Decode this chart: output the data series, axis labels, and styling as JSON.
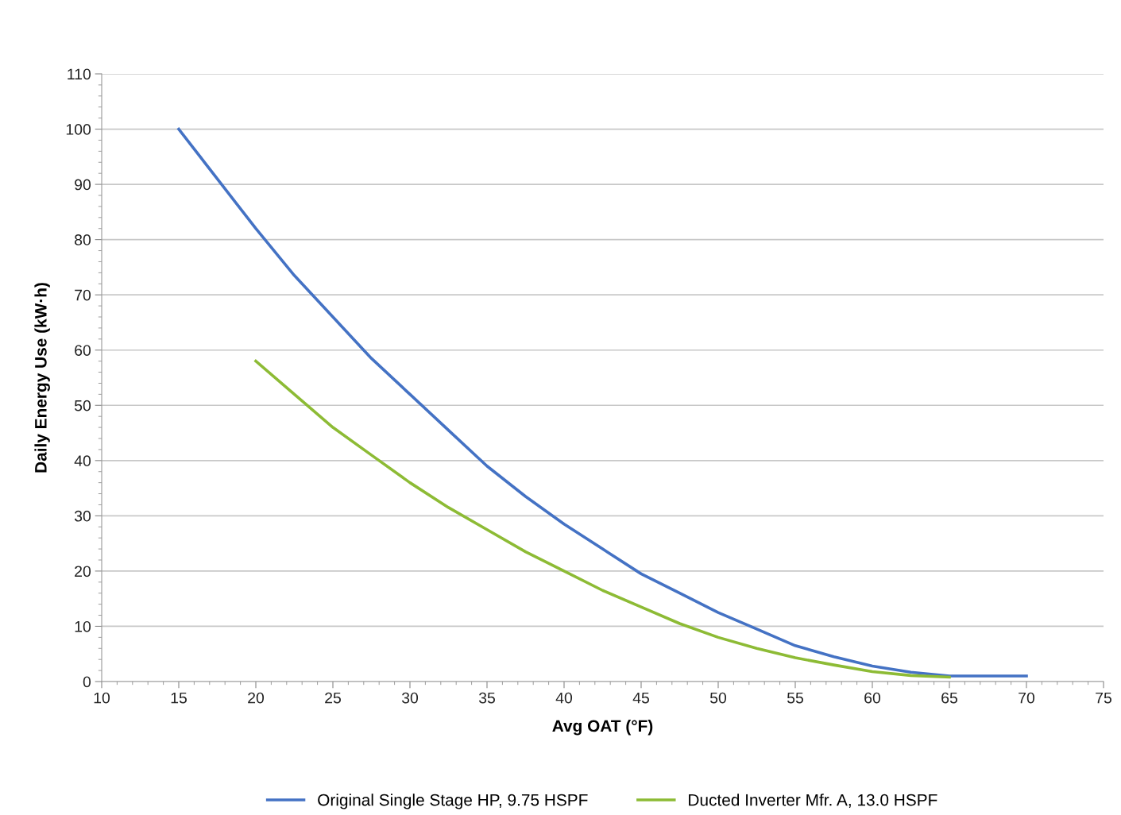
{
  "chart_data": {
    "type": "line",
    "xlabel": "Avg OAT (°F)",
    "ylabel": "Daily Energy Use (kW·h)",
    "xlim": [
      10,
      75
    ],
    "xticks": [
      10,
      15,
      20,
      25,
      30,
      35,
      40,
      45,
      50,
      55,
      60,
      65,
      70,
      75
    ],
    "ylim": [
      0,
      110
    ],
    "yticks": [
      0,
      10,
      20,
      30,
      40,
      50,
      60,
      70,
      80,
      90,
      100,
      110
    ],
    "grid": "y",
    "legend": "bottom",
    "marker": "none",
    "line_style": "solid",
    "series": [
      {
        "name": "Original Single Stage HP, 9.75 HSPF",
        "color": "#4472c4",
        "x": [
          15,
          17.5,
          20,
          22.5,
          25,
          27.5,
          30,
          32.5,
          35,
          37.5,
          40,
          42.5,
          45,
          47.5,
          50,
          52.5,
          55,
          57.5,
          60,
          62.5,
          65,
          67.5,
          70
        ],
        "values": [
          100,
          91,
          82,
          73.5,
          66,
          58.5,
          52,
          45.5,
          39,
          33.5,
          28.5,
          24,
          19.5,
          16,
          12.5,
          9.5,
          6.5,
          4.5,
          2.8,
          1.7,
          1,
          1,
          1
        ]
      },
      {
        "name": "Ducted Inverter Mfr. A, 13.0 HSPF",
        "color": "#8dbb35",
        "x": [
          20,
          22.5,
          25,
          27.5,
          30,
          32.5,
          35,
          37.5,
          40,
          42.5,
          45,
          47.5,
          50,
          52.5,
          55,
          57.5,
          60,
          62.5,
          65
        ],
        "values": [
          58,
          52,
          46,
          41,
          36,
          31.5,
          27.5,
          23.5,
          20,
          16.5,
          13.5,
          10.5,
          8,
          6,
          4.3,
          3,
          1.8,
          1.1,
          0.8
        ]
      }
    ]
  }
}
